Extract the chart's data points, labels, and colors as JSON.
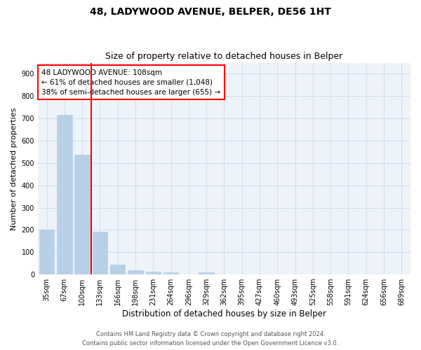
{
  "title": "48, LADYWOOD AVENUE, BELPER, DE56 1HT",
  "subtitle": "Size of property relative to detached houses in Belper",
  "xlabel": "Distribution of detached houses by size in Belper",
  "ylabel": "Number of detached properties",
  "categories": [
    "35sqm",
    "67sqm",
    "100sqm",
    "133sqm",
    "166sqm",
    "198sqm",
    "231sqm",
    "264sqm",
    "296sqm",
    "329sqm",
    "362sqm",
    "395sqm",
    "427sqm",
    "460sqm",
    "493sqm",
    "525sqm",
    "558sqm",
    "591sqm",
    "624sqm",
    "656sqm",
    "689sqm"
  ],
  "values": [
    200,
    715,
    537,
    192,
    43,
    18,
    13,
    9,
    0,
    9,
    0,
    0,
    0,
    0,
    0,
    0,
    0,
    0,
    0,
    0,
    0
  ],
  "bar_color": "#b8cfe8",
  "bar_edge_color": "#b8cfe8",
  "vline_x": 2.5,
  "vline_color": "red",
  "annotation_text": "48 LADYWOOD AVENUE: 108sqm\n← 61% of detached houses are smaller (1,048)\n38% of semi-detached houses are larger (655) →",
  "annotation_box_color": "white",
  "annotation_box_edge_color": "red",
  "ylim": [
    0,
    950
  ],
  "yticks": [
    0,
    100,
    200,
    300,
    400,
    500,
    600,
    700,
    800,
    900
  ],
  "grid_color": "#d0dff0",
  "background_color": "#eef3fa",
  "footer_line1": "Contains HM Land Registry data © Crown copyright and database right 2024.",
  "footer_line2": "Contains public sector information licensed under the Open Government Licence v3.0.",
  "title_fontsize": 10,
  "subtitle_fontsize": 9,
  "tick_fontsize": 7,
  "ylabel_fontsize": 8,
  "xlabel_fontsize": 8.5,
  "annotation_fontsize": 7.5,
  "footer_fontsize": 6
}
